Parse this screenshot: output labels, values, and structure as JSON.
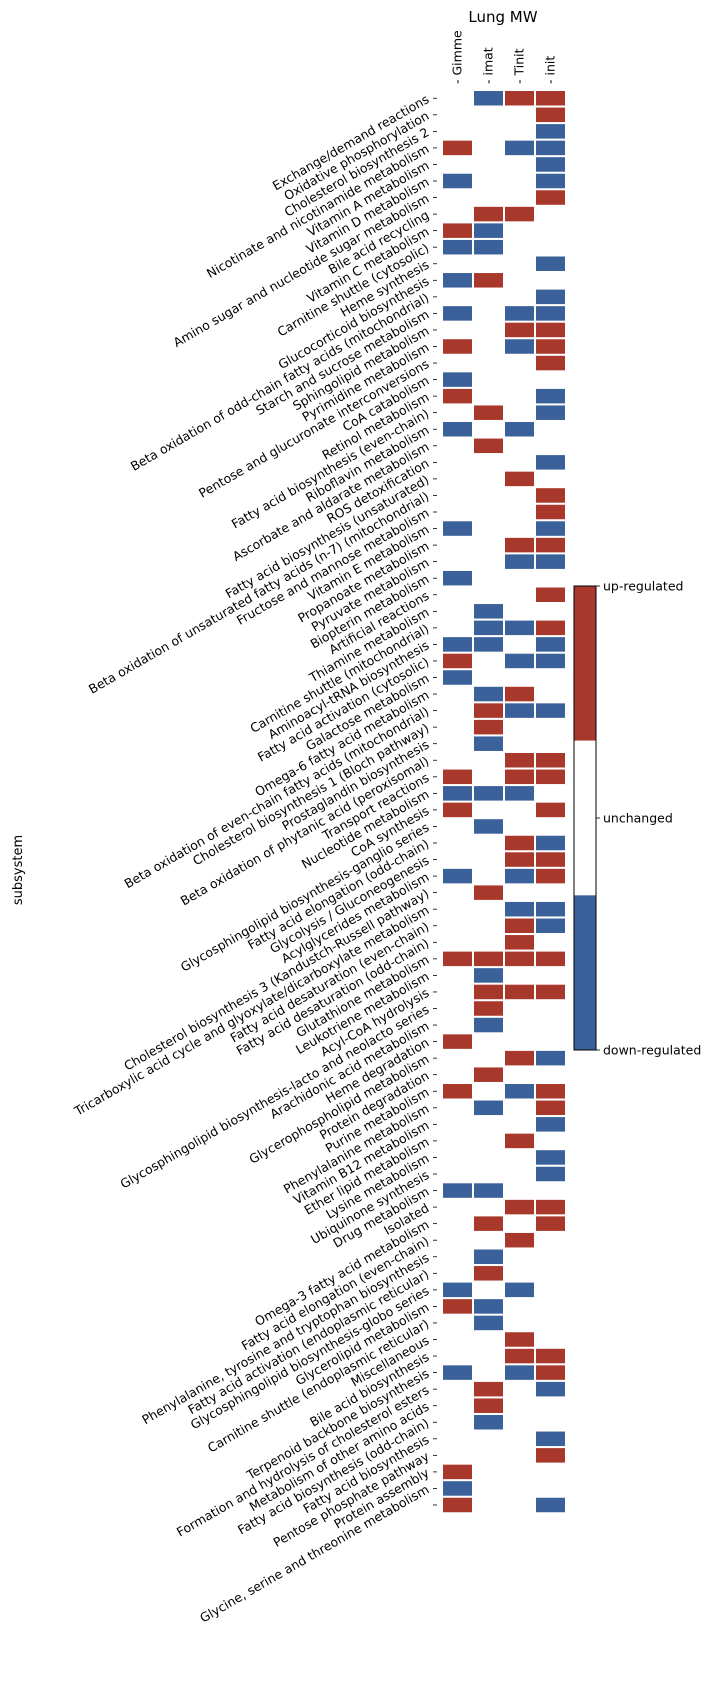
{
  "chart_data": {
    "type": "heatmap",
    "title": "Lung MW",
    "ylabel": "subsystem",
    "columns": [
      "Gimme",
      "imat",
      "Tinit",
      "init"
    ],
    "colorbar": {
      "labels": [
        "up-regulated",
        "unchanged",
        "down-regulated"
      ],
      "values": [
        1,
        0,
        -1
      ]
    },
    "colors": {
      "up": "#a8382c",
      "unchanged": "#ffffff",
      "down": "#3a6199"
    },
    "grid": false,
    "legend_placement": "right",
    "rows": [
      {
        "label": "Exchange/demand reactions",
        "values": [
          0,
          -1,
          1,
          1
        ]
      },
      {
        "label": "Oxidative phosphorylation",
        "values": [
          0,
          0,
          0,
          1
        ]
      },
      {
        "label": "Cholesterol biosynthesis 2",
        "values": [
          0,
          0,
          0,
          -1
        ]
      },
      {
        "label": "Nicotinate and nicotinamide metabolism",
        "values": [
          1,
          0,
          -1,
          -1
        ]
      },
      {
        "label": "Vitamin A metabolism",
        "values": [
          0,
          0,
          0,
          -1
        ]
      },
      {
        "label": "Vitamin D metabolism",
        "values": [
          -1,
          0,
          0,
          -1
        ]
      },
      {
        "label": "Amino sugar and nucleotide sugar metabolism",
        "values": [
          0,
          0,
          0,
          1
        ]
      },
      {
        "label": "Bile acid recycling",
        "values": [
          0,
          1,
          1,
          0
        ]
      },
      {
        "label": "Vitamin C metabolism",
        "values": [
          1,
          -1,
          0,
          0
        ]
      },
      {
        "label": "Carnitine shuttle (cytosolic)",
        "values": [
          -1,
          -1,
          0,
          0
        ]
      },
      {
        "label": "Heme synthesis",
        "values": [
          0,
          0,
          0,
          -1
        ]
      },
      {
        "label": "Glucocorticoid biosynthesis",
        "values": [
          -1,
          1,
          0,
          0
        ]
      },
      {
        "label": "Beta oxidation of odd-chain fatty acids (mitochondrial)",
        "values": [
          0,
          0,
          0,
          -1
        ]
      },
      {
        "label": "Starch and sucrose metabolism",
        "values": [
          -1,
          0,
          -1,
          -1
        ]
      },
      {
        "label": "Sphingolipid metabolism",
        "values": [
          0,
          0,
          1,
          1
        ]
      },
      {
        "label": "Pyrimidine metabolism",
        "values": [
          1,
          0,
          -1,
          1
        ]
      },
      {
        "label": "Pentose and glucuronate interconversions",
        "values": [
          0,
          0,
          0,
          1
        ]
      },
      {
        "label": "CoA catabolism",
        "values": [
          -1,
          0,
          0,
          0
        ]
      },
      {
        "label": "Retinol metabolism",
        "values": [
          1,
          0,
          0,
          -1
        ]
      },
      {
        "label": "Fatty acid biosynthesis (even-chain)",
        "values": [
          0,
          1,
          0,
          -1
        ]
      },
      {
        "label": "Riboflavin metabolism",
        "values": [
          -1,
          0,
          -1,
          0
        ]
      },
      {
        "label": "Ascorbate and aldarate metabolism",
        "values": [
          0,
          1,
          0,
          0
        ]
      },
      {
        "label": "ROS detoxification",
        "values": [
          0,
          0,
          0,
          -1
        ]
      },
      {
        "label": "Fatty acid biosynthesis (unsaturated)",
        "values": [
          0,
          0,
          1,
          0
        ]
      },
      {
        "label": "Beta oxidation of unsaturated fatty acids (n-7) (mitochondrial)",
        "values": [
          0,
          0,
          0,
          1
        ]
      },
      {
        "label": "Fructose and mannose metabolism",
        "values": [
          0,
          0,
          0,
          1
        ]
      },
      {
        "label": "Vitamin E metabolism",
        "values": [
          -1,
          0,
          0,
          -1
        ]
      },
      {
        "label": "Propanoate metabolism",
        "values": [
          0,
          0,
          1,
          1
        ]
      },
      {
        "label": "Pyruvate metabolism",
        "values": [
          0,
          0,
          -1,
          -1
        ]
      },
      {
        "label": "Biopterin metabolism",
        "values": [
          -1,
          0,
          0,
          0
        ]
      },
      {
        "label": "Artificial reactions",
        "values": [
          0,
          0,
          0,
          1
        ]
      },
      {
        "label": "Thiamine metabolism",
        "values": [
          0,
          -1,
          0,
          0
        ]
      },
      {
        "label": "Carnitine shuttle (mitochondrial)",
        "values": [
          0,
          -1,
          -1,
          1
        ]
      },
      {
        "label": "Aminoacyl-tRNA biosynthesis",
        "values": [
          -1,
          -1,
          0,
          -1
        ]
      },
      {
        "label": "Fatty acid activation (cytosolic)",
        "values": [
          1,
          0,
          -1,
          -1
        ]
      },
      {
        "label": "Galactose metabolism",
        "values": [
          -1,
          0,
          0,
          0
        ]
      },
      {
        "label": "Omega-6 fatty acid metabolism",
        "values": [
          0,
          -1,
          1,
          0
        ]
      },
      {
        "label": "Beta oxidation of even-chain fatty acids (mitochondrial)",
        "values": [
          0,
          1,
          -1,
          -1
        ]
      },
      {
        "label": "Cholesterol biosynthesis 1 (Bloch pathway)",
        "values": [
          0,
          1,
          0,
          0
        ]
      },
      {
        "label": "Prostaglandin biosynthesis",
        "values": [
          0,
          -1,
          0,
          0
        ]
      },
      {
        "label": "Beta oxidation of phytanic acid (peroxisomal)",
        "values": [
          0,
          0,
          1,
          1
        ]
      },
      {
        "label": "Transport reactions",
        "values": [
          1,
          0,
          1,
          1
        ]
      },
      {
        "label": "Nucleotide metabolism",
        "values": [
          -1,
          -1,
          -1,
          0
        ]
      },
      {
        "label": "CoA synthesis",
        "values": [
          1,
          0,
          0,
          1
        ]
      },
      {
        "label": "Glycosphingolipid biosynthesis-ganglio series",
        "values": [
          0,
          -1,
          0,
          0
        ]
      },
      {
        "label": "Fatty acid elongation (odd-chain)",
        "values": [
          0,
          0,
          1,
          -1
        ]
      },
      {
        "label": "Glycolysis / Gluconeogenesis",
        "values": [
          0,
          0,
          1,
          1
        ]
      },
      {
        "label": "Acylglycerides metabolism",
        "values": [
          -1,
          0,
          -1,
          1
        ]
      },
      {
        "label": "Cholesterol biosynthesis 3 (Kandustch-Russell pathway)",
        "values": [
          0,
          1,
          0,
          0
        ]
      },
      {
        "label": "Tricarboxylic acid cycle and glyoxylate/dicarboxylate metabolism",
        "values": [
          0,
          0,
          -1,
          -1
        ]
      },
      {
        "label": "Fatty acid desaturation (even-chain)",
        "values": [
          0,
          0,
          1,
          -1
        ]
      },
      {
        "label": "Fatty acid desaturation (odd-chain)",
        "values": [
          0,
          0,
          1,
          0
        ]
      },
      {
        "label": "Glutathione metabolism",
        "values": [
          1,
          1,
          1,
          1
        ]
      },
      {
        "label": "Leukotriene metabolism",
        "values": [
          0,
          -1,
          0,
          0
        ]
      },
      {
        "label": "Acyl-CoA hydrolysis",
        "values": [
          0,
          1,
          1,
          1
        ]
      },
      {
        "label": "Glycosphingolipid biosynthesis-lacto and neolacto series",
        "values": [
          0,
          1,
          0,
          0
        ]
      },
      {
        "label": "Arachidonic acid metabolism",
        "values": [
          0,
          -1,
          0,
          0
        ]
      },
      {
        "label": "Heme degradation",
        "values": [
          1,
          0,
          0,
          0
        ]
      },
      {
        "label": "Glycerophospholipid metabolism",
        "values": [
          0,
          0,
          1,
          -1
        ]
      },
      {
        "label": "Protein degradation",
        "values": [
          0,
          1,
          0,
          0
        ]
      },
      {
        "label": "Purine metabolism",
        "values": [
          1,
          0,
          -1,
          1
        ]
      },
      {
        "label": "Phenylalanine metabolism",
        "values": [
          0,
          -1,
          0,
          1
        ]
      },
      {
        "label": "Vitamin B12 metabolism",
        "values": [
          0,
          0,
          0,
          -1
        ]
      },
      {
        "label": "Ether lipid metabolism",
        "values": [
          0,
          0,
          1,
          0
        ]
      },
      {
        "label": "Lysine metabolism",
        "values": [
          0,
          0,
          0,
          -1
        ]
      },
      {
        "label": "Ubiquinone synthesis",
        "values": [
          0,
          0,
          0,
          -1
        ]
      },
      {
        "label": "Drug metabolism",
        "values": [
          -1,
          -1,
          0,
          0
        ]
      },
      {
        "label": "Isolated",
        "values": [
          0,
          0,
          1,
          1
        ]
      },
      {
        "label": "Omega-3 fatty acid metabolism",
        "values": [
          0,
          1,
          0,
          1
        ]
      },
      {
        "label": "Fatty acid elongation (even-chain)",
        "values": [
          0,
          0,
          1,
          0
        ]
      },
      {
        "label": "Phenylalanine, tyrosine and tryptophan biosynthesis",
        "values": [
          0,
          -1,
          0,
          0
        ]
      },
      {
        "label": "Fatty acid activation (endoplasmic reticular)",
        "values": [
          0,
          1,
          0,
          0
        ]
      },
      {
        "label": "Glycosphingolipid biosynthesis-globo series",
        "values": [
          -1,
          0,
          -1,
          0
        ]
      },
      {
        "label": "Glycerolipid metabolism",
        "values": [
          1,
          -1,
          0,
          0
        ]
      },
      {
        "label": "Carnitine shuttle (endoplasmic reticular)",
        "values": [
          0,
          -1,
          0,
          0
        ]
      },
      {
        "label": "Miscellaneous",
        "values": [
          0,
          0,
          1,
          0
        ]
      },
      {
        "label": "Bile acid biosynthesis",
        "values": [
          0,
          0,
          1,
          1
        ]
      },
      {
        "label": "Terpenoid backbone biosynthesis",
        "values": [
          -1,
          0,
          -1,
          1
        ]
      },
      {
        "label": "Formation and hydrolysis of cholesterol esters",
        "values": [
          0,
          1,
          0,
          -1
        ]
      },
      {
        "label": "Metabolism of other amino acids",
        "values": [
          0,
          1,
          0,
          0
        ]
      },
      {
        "label": "Fatty acid biosynthesis (odd-chain)",
        "values": [
          0,
          -1,
          0,
          0
        ]
      },
      {
        "label": "Fatty acid biosynthesis",
        "values": [
          0,
          0,
          0,
          -1
        ]
      },
      {
        "label": "Pentose phosphate pathway",
        "values": [
          0,
          0,
          0,
          1
        ]
      },
      {
        "label": "Protein assembly",
        "values": [
          1,
          0,
          0,
          0
        ]
      },
      {
        "label": "Glycine, serine and threonine metabolism",
        "values": [
          -1,
          0,
          0,
          0
        ]
      },
      {
        "label": "",
        "values": [
          1,
          0,
          0,
          -1
        ]
      }
    ]
  }
}
